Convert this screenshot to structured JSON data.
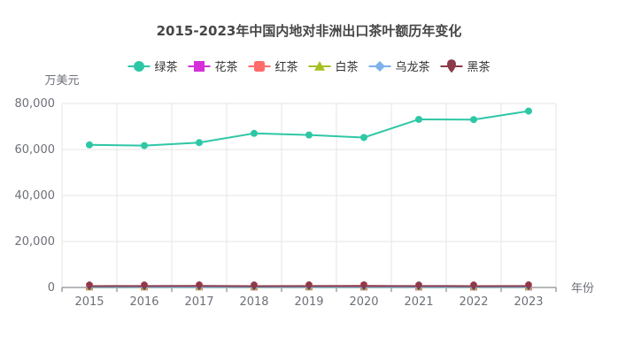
{
  "chart_data": {
    "type": "line",
    "title": "2015-2023年中国内地对非洲出口茶叶额历年变化",
    "xlabel": "年份",
    "ylabel": "万美元",
    "categories": [
      "2015",
      "2016",
      "2017",
      "2018",
      "2019",
      "2020",
      "2021",
      "2022",
      "2023"
    ],
    "ylim": [
      0,
      80000
    ],
    "yticks": [
      0,
      20000,
      40000,
      60000,
      80000
    ],
    "ytick_labels": [
      "0",
      "20,000",
      "40,000",
      "60,000",
      "80,000"
    ],
    "grid": true,
    "legend_position": "top-center",
    "series": [
      {
        "name": "绿茶",
        "color": "#2EC7A6",
        "marker": "circle",
        "values": [
          62000,
          61700,
          63000,
          67000,
          66300,
          65200,
          73100,
          73000,
          76700
        ]
      },
      {
        "name": "花茶",
        "color": "#D62FD9",
        "marker": "square",
        "values": [
          300,
          280,
          310,
          260,
          290,
          270,
          250,
          240,
          260
        ]
      },
      {
        "name": "红茶",
        "color": "#FF6B6B",
        "marker": "roundRect",
        "values": [
          500,
          450,
          520,
          480,
          560,
          700,
          420,
          450,
          600
        ]
      },
      {
        "name": "白茶",
        "color": "#A5C023",
        "marker": "triangle",
        "values": [
          20,
          25,
          30,
          35,
          30,
          25,
          40,
          35,
          30
        ]
      },
      {
        "name": "乌龙茶",
        "color": "#7FB1EA",
        "marker": "diamond",
        "values": [
          150,
          140,
          160,
          150,
          155,
          145,
          160,
          150,
          140
        ]
      },
      {
        "name": "黑茶",
        "color": "#8B3A4A",
        "marker": "pin",
        "values": [
          600,
          620,
          650,
          580,
          640,
          630,
          610,
          600,
          640
        ]
      }
    ]
  }
}
